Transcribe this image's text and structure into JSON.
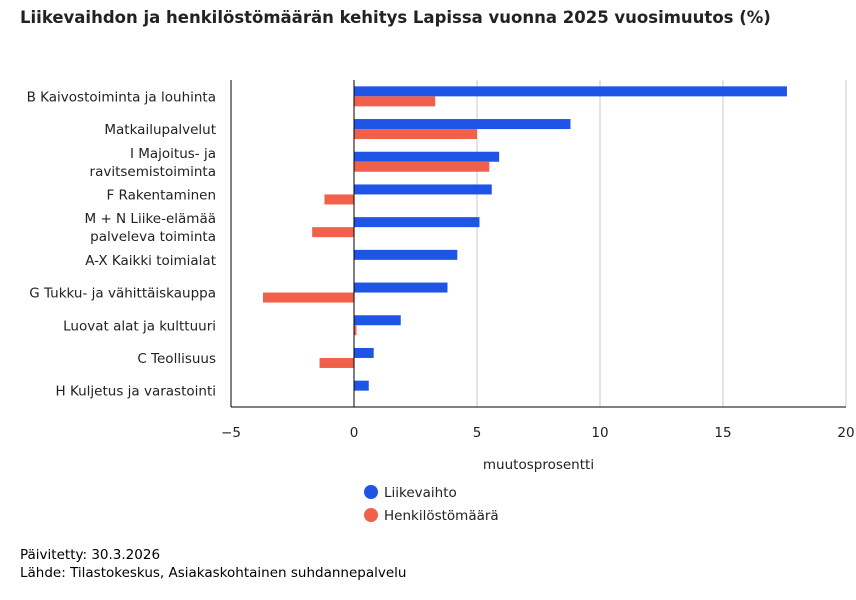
{
  "title": "Liikevaihdon ja henkilöstömäärän kehitys Lapissa vuonna 2025 vuosimuutos (%)",
  "footer": {
    "updated": "Päivitetty: 30.3.2026",
    "source": "Lähde: Tilastokeskus, Asiakaskohtainen suhdannepalvelu"
  },
  "colors": {
    "liikevaihto": "#1f55e6",
    "henkilosto": "#f0604a",
    "grid": "#c8c8c8",
    "axis": "#000000"
  },
  "chart_data": {
    "type": "bar",
    "orientation": "horizontal",
    "categories": [
      [
        "B Kaivostoiminta ja louhinta"
      ],
      [
        "Matkailupalvelut"
      ],
      [
        "I Majoitus- ja",
        "ravitsemistoiminta"
      ],
      [
        "F Rakentaminen"
      ],
      [
        "M + N Liike-elämää",
        "palveleva toiminta"
      ],
      [
        "A-X Kaikki toimialat"
      ],
      [
        "G Tukku- ja vähittäiskauppa"
      ],
      [
        "Luovat alat ja kulttuuri"
      ],
      [
        "C Teollisuus"
      ],
      [
        "H Kuljetus ja varastointi"
      ]
    ],
    "series": [
      {
        "name": "Liikevaihto",
        "color": "#1f55e6",
        "values": [
          17.6,
          8.8,
          5.9,
          5.6,
          5.1,
          4.2,
          3.8,
          1.9,
          0.8,
          0.6
        ]
      },
      {
        "name": "Henkilöstömäärä",
        "color": "#f0604a",
        "values": [
          3.3,
          5.0,
          5.5,
          -1.2,
          -1.7,
          null,
          -3.7,
          0.1,
          -1.4,
          null
        ]
      }
    ],
    "xlabel": "muutosprosentti",
    "xlim": [
      -5,
      20
    ],
    "xticks": [
      -5,
      0,
      5,
      10,
      15,
      20
    ],
    "xtick_labels": [
      "−5",
      "0",
      "5",
      "10",
      "15",
      "20"
    ],
    "grid": true,
    "legend_position": "bottom"
  }
}
